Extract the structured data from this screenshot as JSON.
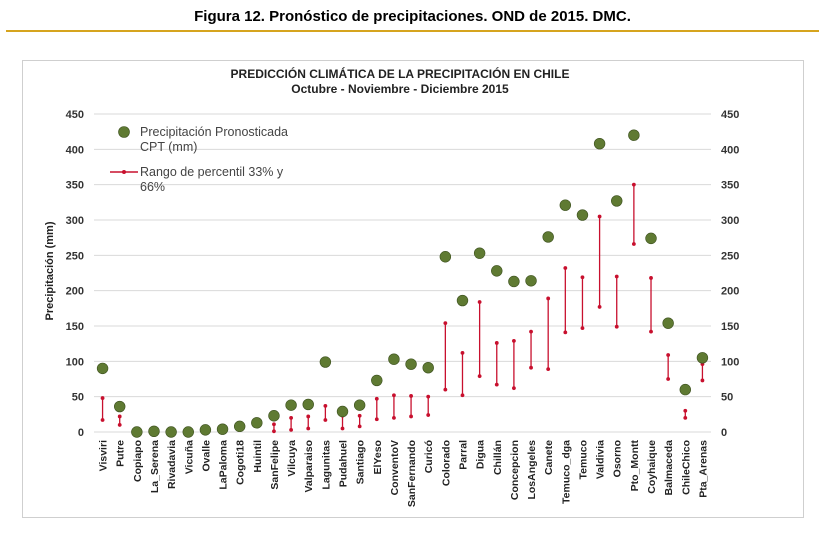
{
  "caption": "Figura 12. Pronóstico de precipitaciones. OND de 2015. DMC.",
  "colors": {
    "accent_rule": "#d6a41e",
    "point_fill": "#5f7a32",
    "range_line": "#c8102e",
    "gridline": "#d9d9d9"
  },
  "chart_data": {
    "type": "scatter",
    "title": "PREDICCIÓN CLIMÁTICA DE LA PRECIPITACIÓN  EN CHILE",
    "subtitle": "Octubre - Noviembre - Diciembre  2015",
    "xlabel": "",
    "ylabel": "Precipitación (mm)",
    "ylim": [
      0,
      450
    ],
    "yticks": [
      0,
      50,
      100,
      150,
      200,
      250,
      300,
      350,
      400,
      450
    ],
    "grid": true,
    "legend_position": "top-left",
    "categories": [
      "Visviri",
      "Putre",
      "Copiapo",
      "La_Serena",
      "Rivadavia",
      "Vicuña",
      "Ovalle",
      "LaPaloma",
      "Cogoti18",
      "Huintil",
      "SanFelipe",
      "Vilcuya",
      "Valparaiso",
      "Lagunitas",
      "Pudahuel",
      "Santiago",
      "ElYeso",
      "ConventoV",
      "SanFernando",
      "Curicó",
      "Colorado",
      "Parral",
      "Digua",
      "Chillán",
      "Concepcion",
      "LosAngeles",
      "Canete",
      "Temuco_dga",
      "Temuco",
      "Valdivia",
      "Osorno",
      "Pto_Montt",
      "Coyhaique",
      "Balmaceda",
      "ChileChico",
      "Pta_Arenas"
    ],
    "series": [
      {
        "name": "Precipitación Pronosticada",
        "name_line2": "CPT (mm)",
        "marker": "circle",
        "values": [
          90,
          36,
          0,
          1,
          0,
          0,
          3,
          4,
          8,
          13,
          23,
          38,
          39,
          99,
          29,
          38,
          73,
          103,
          96,
          91,
          248,
          186,
          253,
          228,
          213,
          214,
          276,
          321,
          307,
          408,
          327,
          420,
          274,
          154,
          60,
          105
        ]
      },
      {
        "name": "Rango de percentil 33% y",
        "name_line2": "66%",
        "marker": "range",
        "lower": [
          17,
          10,
          0,
          0,
          0,
          0,
          0,
          0,
          0,
          0,
          1,
          3,
          5,
          17,
          5,
          8,
          18,
          20,
          22,
          24,
          60,
          52,
          79,
          67,
          62,
          91,
          89,
          141,
          147,
          177,
          149,
          266,
          142,
          75,
          20,
          73
        ],
        "upper": [
          48,
          22,
          0,
          0,
          0,
          0,
          0,
          0,
          0,
          0,
          11,
          20,
          22,
          37,
          23,
          23,
          47,
          52,
          51,
          50,
          154,
          112,
          184,
          126,
          129,
          142,
          189,
          232,
          219,
          305,
          220,
          350,
          218,
          109,
          30,
          96
        ]
      }
    ]
  }
}
